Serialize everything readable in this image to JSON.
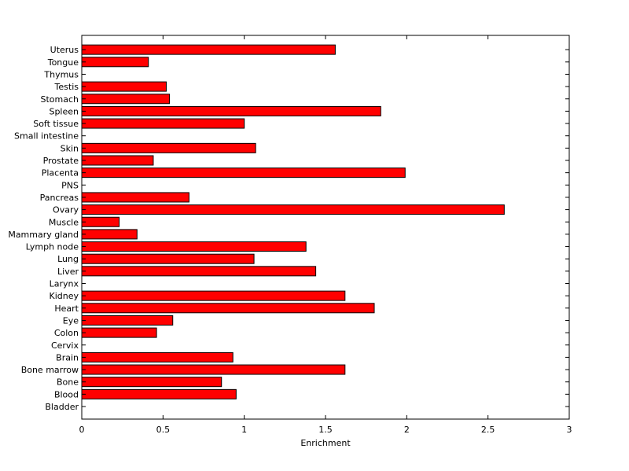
{
  "chart_data": {
    "type": "bar",
    "orientation": "horizontal",
    "title": "",
    "xlabel": "Enrichment",
    "ylabel": "",
    "xlim": [
      0,
      3
    ],
    "xticks": [
      0,
      0.5,
      1,
      1.5,
      2,
      2.5,
      3
    ],
    "xtick_labels": [
      "0",
      "0.5",
      "1",
      "1.5",
      "2",
      "2.5",
      "3"
    ],
    "grid": false,
    "legend": "none",
    "bar_color": "#ff0000",
    "bar_edge_color": "#000000",
    "categories": [
      "Bladder",
      "Blood",
      "Bone",
      "Bone marrow",
      "Brain",
      "Cervix",
      "Colon",
      "Eye",
      "Heart",
      "Kidney",
      "Larynx",
      "Liver",
      "Lung",
      "Lymph node",
      "Mammary gland",
      "Muscle",
      "Ovary",
      "Pancreas",
      "PNS",
      "Placenta",
      "Prostate",
      "Skin",
      "Small intestine",
      "Soft tissue",
      "Spleen",
      "Stomach",
      "Testis",
      "Thymus",
      "Tongue",
      "Uterus"
    ],
    "values": [
      0,
      0.95,
      0.86,
      1.62,
      0.93,
      0,
      0.46,
      0.56,
      1.8,
      1.62,
      0,
      1.44,
      1.06,
      1.38,
      0.34,
      0.23,
      2.6,
      0.66,
      0,
      1.99,
      0.44,
      1.07,
      0,
      1.0,
      1.84,
      0.54,
      0.52,
      0,
      0.41,
      1.56
    ]
  }
}
